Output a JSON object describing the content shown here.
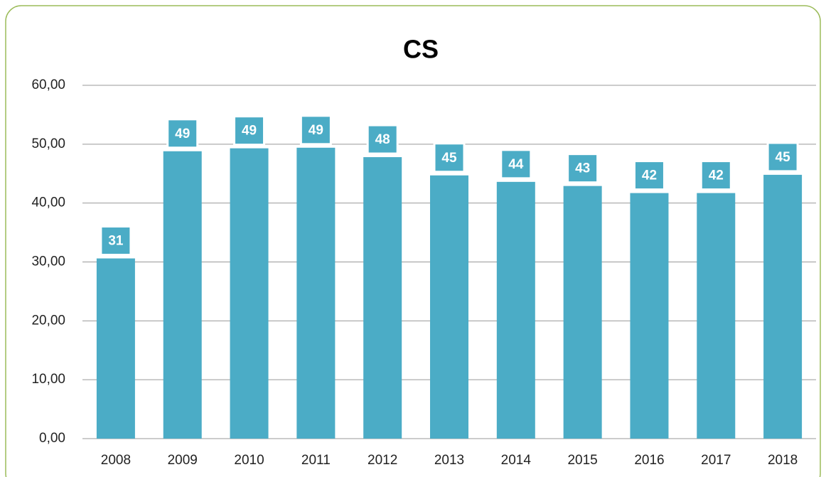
{
  "chart_data": {
    "type": "bar",
    "title": "CS",
    "categories": [
      "2008",
      "2009",
      "2010",
      "2011",
      "2012",
      "2013",
      "2014",
      "2015",
      "2016",
      "2017",
      "2018"
    ],
    "values": [
      30.6,
      48.8,
      49.3,
      49.4,
      47.8,
      44.7,
      43.6,
      42.9,
      41.7,
      41.7,
      44.8
    ],
    "value_labels": [
      "31",
      "49",
      "49",
      "49",
      "48",
      "45",
      "44",
      "43",
      "42",
      "42",
      "45"
    ],
    "color": "#4bacc6",
    "ylim": [
      0,
      60
    ],
    "yticks": [
      {
        "value": 0,
        "label": "0,00"
      },
      {
        "value": 10,
        "label": "10,00"
      },
      {
        "value": 20,
        "label": "20,00"
      },
      {
        "value": 30,
        "label": "30,00"
      },
      {
        "value": 40,
        "label": "40,00"
      },
      {
        "value": 50,
        "label": "50,00"
      },
      {
        "value": 60,
        "label": "60,00"
      }
    ],
    "grid": true
  }
}
